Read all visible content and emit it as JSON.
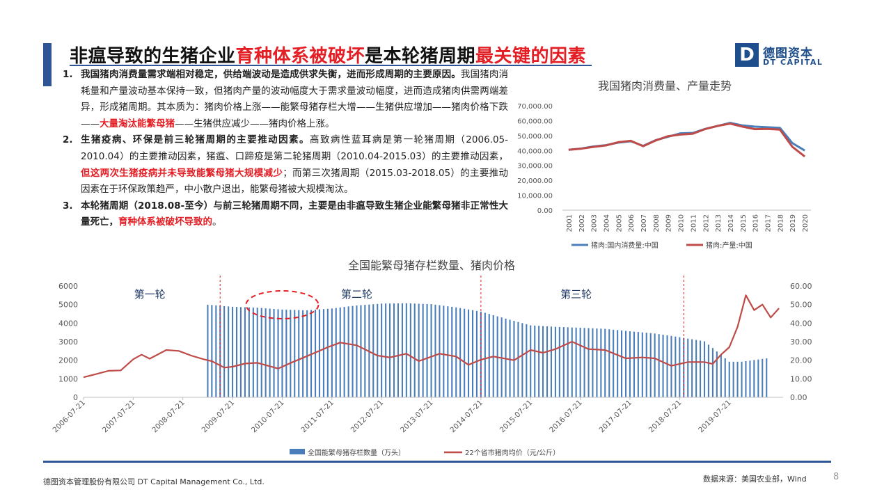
{
  "slide": {
    "title_part1": "非瘟导致的生猪企业",
    "title_part2": "育种体系被破坏",
    "title_part3": "是本轮猪周期",
    "title_part4": "最关键的因素",
    "brand_color": "#2f5597",
    "highlight_color": "#e31e24"
  },
  "logo": {
    "mark": "D",
    "cn": "德图资本",
    "en": "DT CAPITAL"
  },
  "points": [
    {
      "num": "1.",
      "bold": "我国猪肉消费量需求端相对稳定，供给端波动是造成供求失衡，进而形成周期的主要原因。",
      "text1": "我国猪肉消耗量和产量波动基本保持一致，但猪肉产量的波动幅度大于需求量波动幅度，进而造成猪肉供需两端差异，形成猪周期。其本质为：猪肉价格上涨——能繁母猪存栏大增——生猪供应增加——猪肉价格下跌——",
      "red": "大量淘汰能繁母猪",
      "text2": "——生猪供应减少——猪肉价格上涨。"
    },
    {
      "num": "2.",
      "bold": "生猪疫病、环保是前三轮猪周期的主要推动因素。",
      "text1": "高致病性蓝耳病是第一轮猪周期（2006.05-2010.04）的主要推动因素，猪瘟、口蹄疫是第二轮猪周期（2010.04-2015.03）的主要推动因素，",
      "red": "但这两次生猪疫病并未导致能繁母猪大规模减少",
      "text2": "；而第三次猪周期（2015.03-2018.05）的主要推动因素在于环保政策趋严，中小散户退出，能繁母猪被大规模淘汰。"
    },
    {
      "num": "3.",
      "bold": "本轮猪周期（2018.08-至今）与前三轮猪周期不同，主要是由非瘟导致生猪企业能繁母猪非正常性大量死亡，",
      "text1": "",
      "red": "育种体系被破坏导致的",
      "text2": "。"
    }
  ],
  "chart_top": {
    "title": "我国猪肉消费量、产量走势",
    "y_ticks": [
      "70,000.00",
      "60,000.00",
      "50,000.00",
      "40,000.00",
      "30,000.00",
      "20,000.00",
      "10,000.00",
      "0.00"
    ],
    "legend": [
      "猪肉:国内消费量:中国",
      "猪肉:产量:中国"
    ],
    "colors": [
      "#4a7ebb",
      "#be4b48"
    ]
  },
  "chart_bottom": {
    "title": "全国能繁母猪存栏数量、猪肉价格",
    "left_ticks": [
      "6000",
      "5000",
      "4000",
      "3000",
      "2000",
      "1000",
      "0"
    ],
    "right_ticks": [
      "60.00",
      "50.00",
      "40.00",
      "30.00",
      "20.00",
      "10.00",
      "0.00"
    ],
    "x_ticks": [
      "2006-07-21",
      "2007-07-21",
      "2008-07-21",
      "2009-07-21",
      "2010-07-21",
      "2011-07-21",
      "2012-07-21",
      "2013-07-21",
      "2014-07-21",
      "2015-07-21",
      "2016-07-21",
      "2017-07-21",
      "2018-07-21",
      "2019-07-21"
    ],
    "rounds": [
      "第一轮",
      "第二轮",
      "第三轮"
    ],
    "legend": [
      "全国能繁母猪存栏数量（万头）",
      "22个省市猪肉均价（元/公斤）"
    ],
    "colors": [
      "#4a7ebb",
      "#be4b48"
    ]
  },
  "chart_data": [
    {
      "type": "line",
      "title": "我国猪肉消费量、产量走势",
      "x": [
        "2001",
        "2002",
        "2003",
        "2004",
        "2005",
        "2006",
        "2007",
        "2008",
        "2009",
        "2010",
        "2011",
        "2012",
        "2013",
        "2014",
        "2015",
        "2016",
        "2017",
        "2018",
        "2019",
        "2020"
      ],
      "ylim": [
        0,
        70000
      ],
      "series": [
        {
          "name": "猪肉:国内消费量:中国",
          "values": [
            40500,
            41300,
            42700,
            43600,
            45300,
            46200,
            43100,
            46900,
            49200,
            51500,
            51800,
            54500,
            56500,
            58500,
            56800,
            56000,
            55600,
            55200,
            45000,
            40000
          ]
        },
        {
          "name": "猪肉:产量:中国",
          "values": [
            40500,
            41200,
            42400,
            43400,
            45600,
            46500,
            42900,
            46700,
            49600,
            50700,
            51300,
            54400,
            56500,
            58000,
            56000,
            54300,
            54500,
            54000,
            42500,
            36000
          ]
        }
      ],
      "legend": "bottom"
    },
    {
      "type": "bar+line",
      "title": "全国能繁母猪存栏数量、猪肉价格",
      "x_ticks": [
        "2006-07-21",
        "2007-07-21",
        "2008-07-21",
        "2009-07-21",
        "2010-07-21",
        "2011-07-21",
        "2012-07-21",
        "2013-07-21",
        "2014-07-21",
        "2015-07-21",
        "2016-07-21",
        "2017-07-21",
        "2018-07-21",
        "2019-07-21"
      ],
      "left_ylim": [
        0,
        6000
      ],
      "right_ylim": [
        0,
        60
      ],
      "bar_series": {
        "name": "全国能繁母猪存栏数量（万头）",
        "points": [
          [
            "2009-01",
            4990
          ],
          [
            "2009-07",
            4880
          ],
          [
            "2010-01",
            4830
          ],
          [
            "2010-07",
            4730
          ],
          [
            "2011-01",
            4690
          ],
          [
            "2011-07",
            4790
          ],
          [
            "2012-01",
            4950
          ],
          [
            "2012-07",
            5050
          ],
          [
            "2013-01",
            5070
          ],
          [
            "2013-07",
            5020
          ],
          [
            "2014-01",
            4850
          ],
          [
            "2014-07",
            4620
          ],
          [
            "2015-01",
            4240
          ],
          [
            "2015-07",
            3880
          ],
          [
            "2016-01",
            3800
          ],
          [
            "2016-07",
            3750
          ],
          [
            "2017-01",
            3690
          ],
          [
            "2017-07",
            3560
          ],
          [
            "2018-01",
            3440
          ],
          [
            "2018-07",
            3240
          ],
          [
            "2019-01",
            3020
          ],
          [
            "2019-07",
            1920
          ],
          [
            "2019-10",
            1920
          ],
          [
            "2020-01",
            2010
          ],
          [
            "2020-04",
            2100
          ]
        ]
      },
      "line_series": {
        "name": "22个省市猪肉均价（元/公斤）",
        "points": [
          [
            "2006-07",
            10.8
          ],
          [
            "2006-10",
            12.5
          ],
          [
            "2007-01",
            14.3
          ],
          [
            "2007-04",
            14.5
          ],
          [
            "2007-07",
            20.5
          ],
          [
            "2007-09",
            23.0
          ],
          [
            "2007-11",
            20.8
          ],
          [
            "2008-03",
            25.5
          ],
          [
            "2008-06",
            25.0
          ],
          [
            "2008-09",
            22.5
          ],
          [
            "2008-12",
            20.5
          ],
          [
            "2009-02",
            19.5
          ],
          [
            "2009-05",
            16.0
          ],
          [
            "2009-07",
            16.5
          ],
          [
            "2009-10",
            18.2
          ],
          [
            "2010-01",
            18.6
          ],
          [
            "2010-06",
            15.5
          ],
          [
            "2010-09",
            18.5
          ],
          [
            "2011-01",
            22.2
          ],
          [
            "2011-06",
            27.0
          ],
          [
            "2011-09",
            29.5
          ],
          [
            "2012-01",
            28.0
          ],
          [
            "2012-06",
            22.5
          ],
          [
            "2012-09",
            21.5
          ],
          [
            "2013-01",
            23.5
          ],
          [
            "2013-04",
            19.5
          ],
          [
            "2013-09",
            23.5
          ],
          [
            "2014-01",
            22.0
          ],
          [
            "2014-04",
            17.5
          ],
          [
            "2014-07",
            20.3
          ],
          [
            "2014-10",
            22.0
          ],
          [
            "2015-03",
            20.0
          ],
          [
            "2015-07",
            25.5
          ],
          [
            "2015-10",
            24.0
          ],
          [
            "2016-01",
            26.0
          ],
          [
            "2016-05",
            30.0
          ],
          [
            "2016-09",
            26.0
          ],
          [
            "2017-01",
            25.5
          ],
          [
            "2017-06",
            21.0
          ],
          [
            "2017-10",
            21.5
          ],
          [
            "2018-01",
            21.0
          ],
          [
            "2018-05",
            17.0
          ],
          [
            "2018-09",
            19.0
          ],
          [
            "2019-01",
            19.0
          ],
          [
            "2019-03",
            18.0
          ],
          [
            "2019-05",
            23.0
          ],
          [
            "2019-07",
            27.0
          ],
          [
            "2019-09",
            38.0
          ],
          [
            "2019-11",
            55.0
          ],
          [
            "2020-01",
            47.0
          ],
          [
            "2020-03",
            50.0
          ],
          [
            "2020-05",
            43.0
          ],
          [
            "2020-07",
            48.0
          ]
        ]
      },
      "round_dividers": [
        "2009-04",
        "2014-07",
        "2018-08"
      ],
      "annotations": [
        "第一轮",
        "第二轮",
        "第三轮"
      ],
      "legend": "bottom"
    }
  ],
  "footer": {
    "company": "德图资本管理股份有限公司 DT Capital Management Co., Ltd.",
    "source": "数据来源：美国农业部，Wind",
    "page": "8"
  }
}
